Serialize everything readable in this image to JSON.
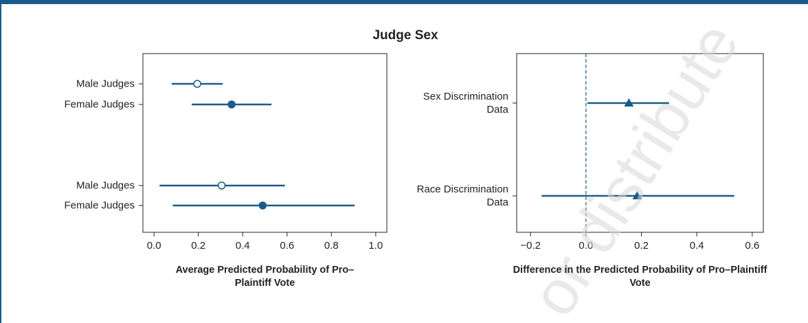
{
  "title": "Judge Sex",
  "watermark": "or distribute",
  "chart_data": [
    {
      "type": "dot-whisker",
      "categories": [
        "Male Judges",
        "Female Judges",
        "Male Judges",
        "Female Judges"
      ],
      "values": [
        0.195,
        0.35,
        0.305,
        0.49
      ],
      "lower": [
        0.08,
        0.17,
        0.025,
        0.085
      ],
      "upper": [
        0.31,
        0.53,
        0.59,
        0.905
      ],
      "marker": [
        "open-circle",
        "circle",
        "open-circle",
        "circle"
      ],
      "color": "#1a5b8c",
      "xlabel": "Average Predicted Probability of Pro–Plaintiff Vote",
      "xlim": [
        -0.05,
        1.05
      ],
      "xticks": [
        {
          "value": 0,
          "label": "0.0"
        },
        0.2,
        0.4,
        0.6,
        0.8,
        {
          "value": 1,
          "label": "1.0"
        }
      ]
    },
    {
      "type": "dot-whisker",
      "categories": [
        "Sex Discrimination Data",
        "Race Discrimination Data"
      ],
      "values": [
        0.155,
        0.185
      ],
      "lower": [
        0.005,
        -0.16
      ],
      "upper": [
        0.3,
        0.535
      ],
      "marker": [
        "triangle",
        "triangle"
      ],
      "color": "#1a5b8c",
      "reference_line": 0,
      "xlabel": "Difference in the Predicted Probability of Pro–Plaintiff Vote",
      "xlim": [
        -0.25,
        0.64
      ],
      "xticks": [
        {
          "value": -0.2,
          "label": "−0.2"
        },
        {
          "value": 0,
          "label": "0.0"
        },
        0.2,
        0.4,
        0.6
      ]
    }
  ]
}
